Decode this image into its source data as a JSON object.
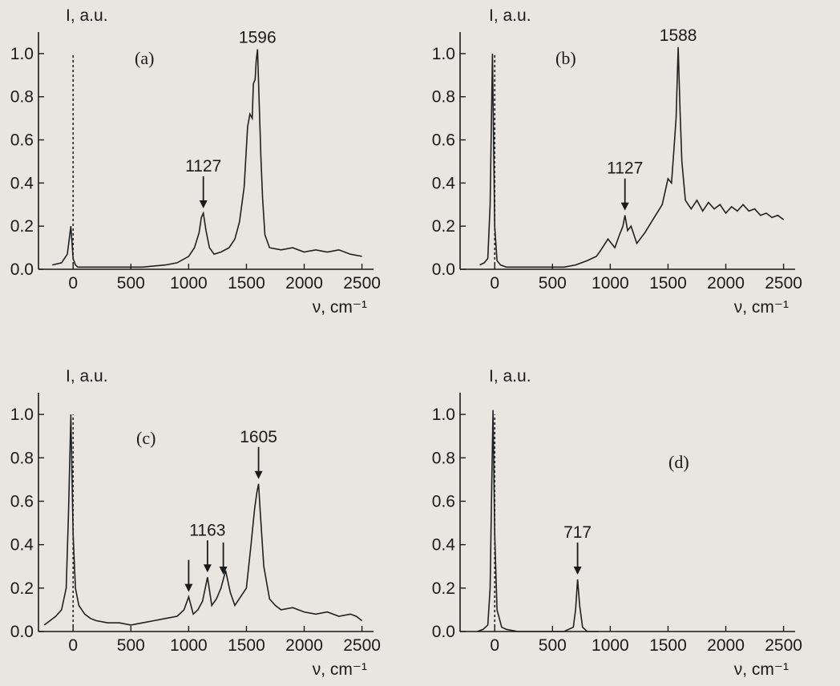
{
  "chart_data": [
    {
      "type": "line",
      "panel_label": "(a)",
      "ylabel": "I, a.u.",
      "xlabel": "ν, cm⁻¹",
      "xlim": [
        -300,
        2600
      ],
      "ylim": [
        0,
        1.1
      ],
      "x_ticks": [
        "0",
        "500",
        "1000",
        "1500",
        "2000",
        "2500"
      ],
      "y_ticks": [
        "0.0",
        "0.2",
        "0.4",
        "0.6",
        "0.8",
        "1.0"
      ],
      "x_tick_values": [
        0,
        500,
        1000,
        1500,
        2000,
        2500
      ],
      "y_tick_values": [
        0,
        0.2,
        0.4,
        0.6,
        0.8,
        1.0
      ],
      "laser_line_dashed": true,
      "series": [
        {
          "x": [
            -180,
            -100,
            -50,
            -20,
            0,
            20,
            40,
            100,
            200,
            400,
            600,
            800,
            900,
            1000,
            1050,
            1090,
            1110,
            1127,
            1150,
            1180,
            1220,
            1280,
            1350,
            1400,
            1440,
            1480,
            1510,
            1530,
            1550,
            1560,
            1575,
            1585,
            1596,
            1610,
            1625,
            1640,
            1660,
            1700,
            1800,
            1900,
            2000,
            2100,
            2200,
            2300,
            2400,
            2500
          ],
          "y": [
            0.02,
            0.03,
            0.07,
            0.2,
            0.05,
            0.02,
            0.01,
            0.01,
            0.01,
            0.01,
            0.01,
            0.02,
            0.03,
            0.06,
            0.1,
            0.17,
            0.24,
            0.26,
            0.18,
            0.1,
            0.07,
            0.08,
            0.1,
            0.14,
            0.22,
            0.38,
            0.66,
            0.72,
            0.7,
            0.86,
            0.88,
            0.97,
            1.02,
            0.78,
            0.52,
            0.33,
            0.16,
            0.1,
            0.09,
            0.1,
            0.08,
            0.09,
            0.08,
            0.09,
            0.07,
            0.06
          ]
        }
      ],
      "annotations": [
        {
          "label": "1596",
          "x": 1596,
          "arrow": false
        },
        {
          "label": "1127",
          "x": 1127,
          "arrow": true
        }
      ]
    },
    {
      "type": "line",
      "panel_label": "(b)",
      "ylabel": "I, a.u.",
      "xlabel": "ν, cm⁻¹",
      "xlim": [
        -300,
        2600
      ],
      "ylim": [
        0,
        1.1
      ],
      "x_ticks": [
        "0",
        "500",
        "1000",
        "1500",
        "2000",
        "2500"
      ],
      "y_ticks": [
        "0.0",
        "0.2",
        "0.4",
        "0.6",
        "0.8",
        "1.0"
      ],
      "x_tick_values": [
        0,
        500,
        1000,
        1500,
        2000,
        2500
      ],
      "y_tick_values": [
        0,
        0.2,
        0.4,
        0.6,
        0.8,
        1.0
      ],
      "laser_line_dashed": true,
      "series": [
        {
          "x": [
            -130,
            -90,
            -60,
            -40,
            -20,
            0,
            20,
            50,
            100,
            300,
            500,
            600,
            700,
            800,
            880,
            920,
            980,
            1040,
            1080,
            1110,
            1127,
            1150,
            1180,
            1230,
            1300,
            1380,
            1450,
            1500,
            1530,
            1550,
            1570,
            1588,
            1605,
            1620,
            1650,
            1700,
            1750,
            1800,
            1850,
            1900,
            1950,
            2000,
            2050,
            2100,
            2150,
            2200,
            2250,
            2300,
            2350,
            2400,
            2450,
            2500
          ],
          "y": [
            0.02,
            0.03,
            0.05,
            0.3,
            1.0,
            0.2,
            0.04,
            0.02,
            0.01,
            0.01,
            0.01,
            0.01,
            0.02,
            0.04,
            0.06,
            0.09,
            0.14,
            0.1,
            0.16,
            0.2,
            0.25,
            0.18,
            0.2,
            0.12,
            0.17,
            0.24,
            0.3,
            0.42,
            0.4,
            0.55,
            0.7,
            1.03,
            0.72,
            0.5,
            0.32,
            0.28,
            0.32,
            0.27,
            0.31,
            0.28,
            0.3,
            0.26,
            0.29,
            0.27,
            0.3,
            0.27,
            0.28,
            0.25,
            0.26,
            0.24,
            0.25,
            0.23
          ]
        }
      ],
      "annotations": [
        {
          "label": "1588",
          "x": 1588,
          "arrow": false
        },
        {
          "label": "1127",
          "x": 1127,
          "arrow": true
        }
      ]
    },
    {
      "type": "line",
      "panel_label": "(c)",
      "ylabel": "I, a.u.",
      "xlabel": "ν, cm⁻¹",
      "xlim": [
        -300,
        2600
      ],
      "ylim": [
        0,
        1.1
      ],
      "x_ticks": [
        "0",
        "500",
        "1000",
        "1500",
        "2000",
        "2500"
      ],
      "y_ticks": [
        "0.0",
        "0.2",
        "0.4",
        "0.6",
        "0.8",
        "1.0"
      ],
      "x_tick_values": [
        0,
        500,
        1000,
        1500,
        2000,
        2500
      ],
      "y_tick_values": [
        0,
        0.2,
        0.4,
        0.6,
        0.8,
        1.0
      ],
      "laser_line_dashed": true,
      "series": [
        {
          "x": [
            -250,
            -200,
            -150,
            -100,
            -60,
            -40,
            -20,
            0,
            20,
            50,
            100,
            150,
            200,
            300,
            400,
            500,
            600,
            700,
            800,
            900,
            960,
            1000,
            1040,
            1080,
            1120,
            1163,
            1200,
            1240,
            1280,
            1320,
            1360,
            1400,
            1450,
            1500,
            1540,
            1570,
            1590,
            1605,
            1620,
            1650,
            1700,
            1750,
            1800,
            1900,
            2000,
            2100,
            2200,
            2300,
            2400,
            2450,
            2500
          ],
          "y": [
            0.03,
            0.05,
            0.07,
            0.1,
            0.2,
            0.55,
            1.0,
            0.45,
            0.2,
            0.12,
            0.08,
            0.06,
            0.05,
            0.04,
            0.04,
            0.03,
            0.04,
            0.05,
            0.06,
            0.07,
            0.1,
            0.16,
            0.08,
            0.1,
            0.14,
            0.25,
            0.12,
            0.15,
            0.2,
            0.28,
            0.18,
            0.12,
            0.16,
            0.2,
            0.4,
            0.56,
            0.64,
            0.68,
            0.55,
            0.3,
            0.15,
            0.12,
            0.1,
            0.11,
            0.09,
            0.08,
            0.09,
            0.07,
            0.08,
            0.07,
            0.05
          ]
        }
      ],
      "annotations": [
        {
          "label": "1605",
          "x": 1605,
          "arrow": true
        },
        {
          "label": "1163",
          "x": 1163,
          "arrow": true
        },
        {
          "label": "",
          "x": 1000,
          "arrow": true
        },
        {
          "label": "",
          "x": 1300,
          "arrow": true
        }
      ]
    },
    {
      "type": "line",
      "panel_label": "(d)",
      "ylabel": "I, a.u.",
      "xlabel": "ν, cm⁻¹",
      "xlim": [
        -300,
        2600
      ],
      "ylim": [
        0,
        1.1
      ],
      "x_ticks": [
        "0",
        "500",
        "1000",
        "1500",
        "2000",
        "2500"
      ],
      "y_ticks": [
        "0.0",
        "0.2",
        "0.4",
        "0.6",
        "0.8",
        "1.0"
      ],
      "x_tick_values": [
        0,
        500,
        1000,
        1500,
        2000,
        2500
      ],
      "y_tick_values": [
        0,
        0.2,
        0.4,
        0.6,
        0.8,
        1.0
      ],
      "laser_line_dashed": true,
      "series": [
        {
          "x": [
            -150,
            -100,
            -60,
            -40,
            -25,
            -15,
            0,
            20,
            60,
            100,
            200,
            300,
            400,
            500,
            600,
            680,
            700,
            717,
            735,
            760,
            800,
            900
          ],
          "y": [
            0.0,
            0.01,
            0.03,
            0.2,
            0.7,
            1.02,
            0.45,
            0.1,
            0.02,
            0.01,
            0.0,
            0.0,
            0.0,
            0.0,
            0.0,
            0.02,
            0.1,
            0.24,
            0.12,
            0.02,
            0.0,
            0.0
          ]
        }
      ],
      "annotations": [
        {
          "label": "717",
          "x": 717,
          "arrow": true
        }
      ]
    }
  ]
}
